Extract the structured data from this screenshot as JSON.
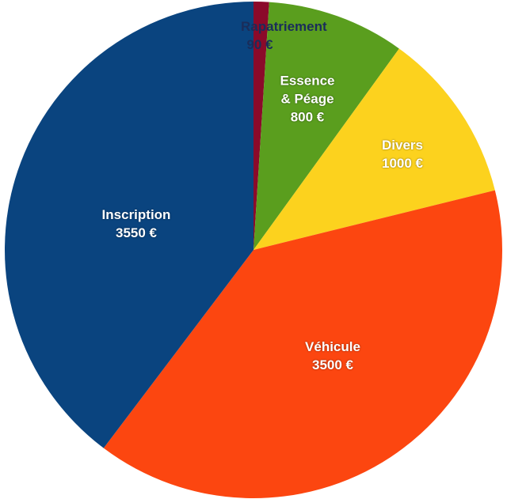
{
  "chart_data": {
    "type": "pie",
    "categories": [
      "Rapatriement",
      "Essence & Péage",
      "Divers",
      "Véhicule",
      "Inscription"
    ],
    "values": [
      90,
      800,
      1000,
      3500,
      3550
    ],
    "value_labels": [
      "90 €",
      "800 €",
      "1000 €",
      "3500 €",
      "3550 €"
    ],
    "colors": [
      "#8b0a2a",
      "#5a9e1e",
      "#fcd21e",
      "#fc4610",
      "#0a447f"
    ]
  }
}
